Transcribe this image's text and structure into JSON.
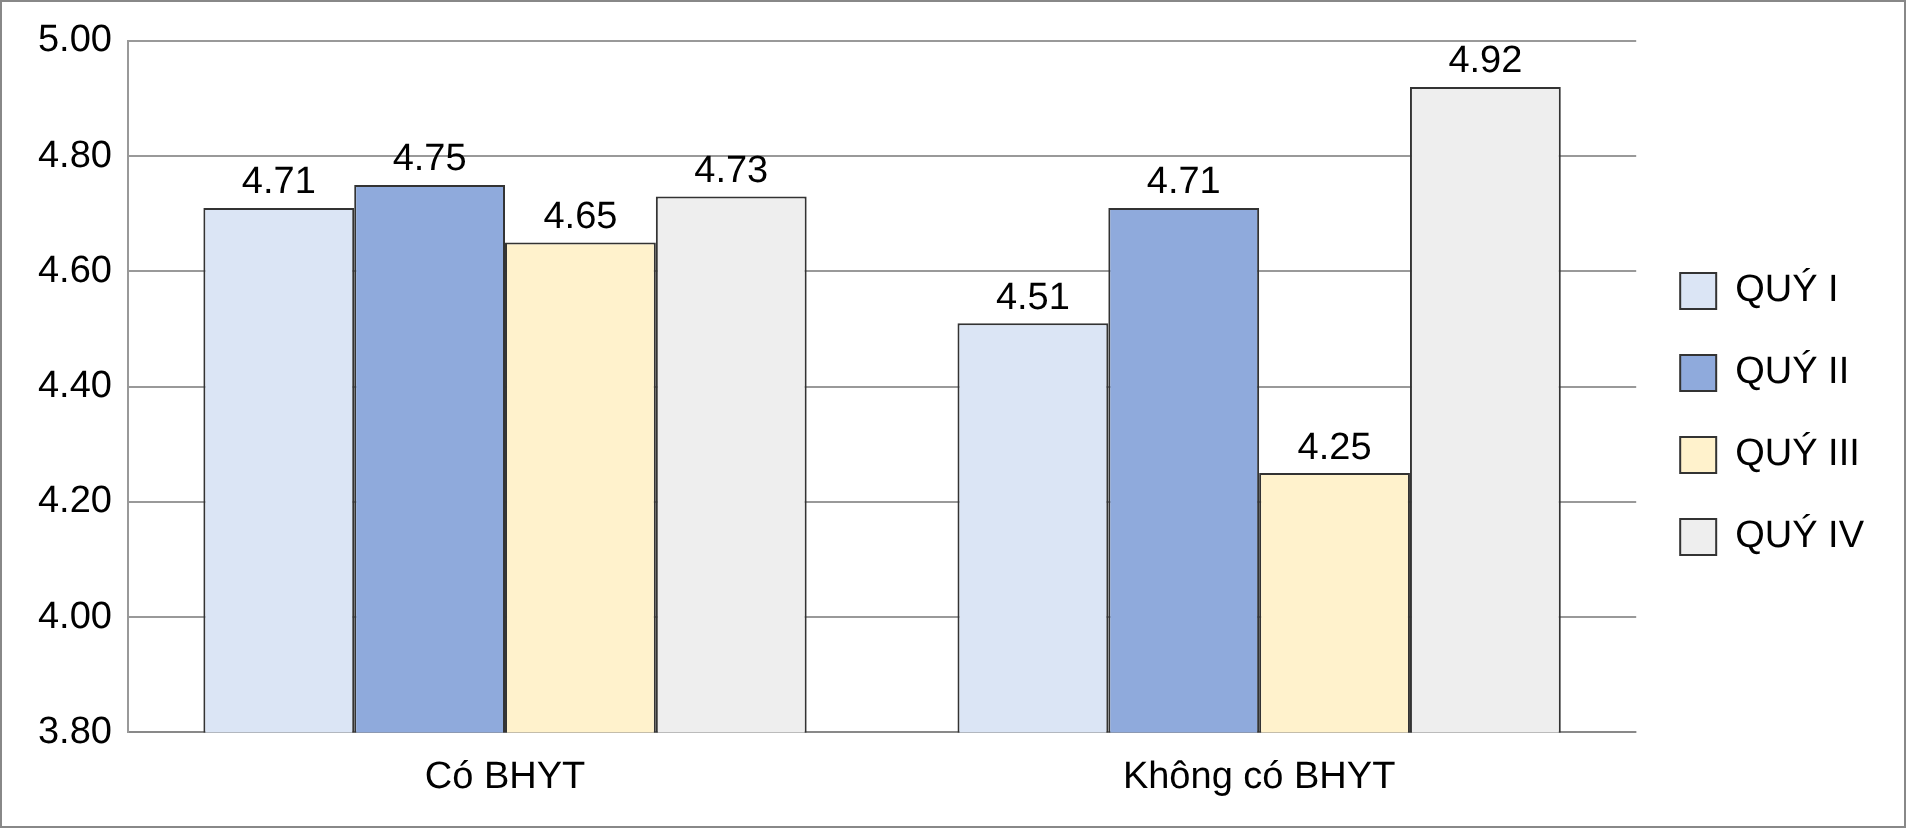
{
  "chart_data": {
    "type": "bar",
    "categories": [
      "Có BHYT",
      "Không có BHYT"
    ],
    "series": [
      {
        "name": "QUÝ I",
        "color": "#dbe5f5",
        "values": [
          4.71,
          4.51
        ]
      },
      {
        "name": "QUÝ II",
        "color": "#8faadc",
        "values": [
          4.75,
          4.71
        ]
      },
      {
        "name": "QUÝ III",
        "color": "#fff2cc",
        "values": [
          4.65,
          4.25
        ]
      },
      {
        "name": "QUÝ IV",
        "color": "#eeeeee",
        "values": [
          4.73,
          4.92
        ]
      }
    ],
    "ylim": [
      3.8,
      5.0
    ],
    "yticks": [
      {
        "value": 3.8,
        "label": "3.80"
      },
      {
        "value": 4.0,
        "label": "4.00"
      },
      {
        "value": 4.2,
        "label": "4.20"
      },
      {
        "value": 4.4,
        "label": "4.40"
      },
      {
        "value": 4.6,
        "label": "4.60"
      },
      {
        "value": 4.8,
        "label": "4.80"
      },
      {
        "value": 5.0,
        "label": "5.00"
      }
    ],
    "grid": "y",
    "legend": "right",
    "data_labels": true
  }
}
